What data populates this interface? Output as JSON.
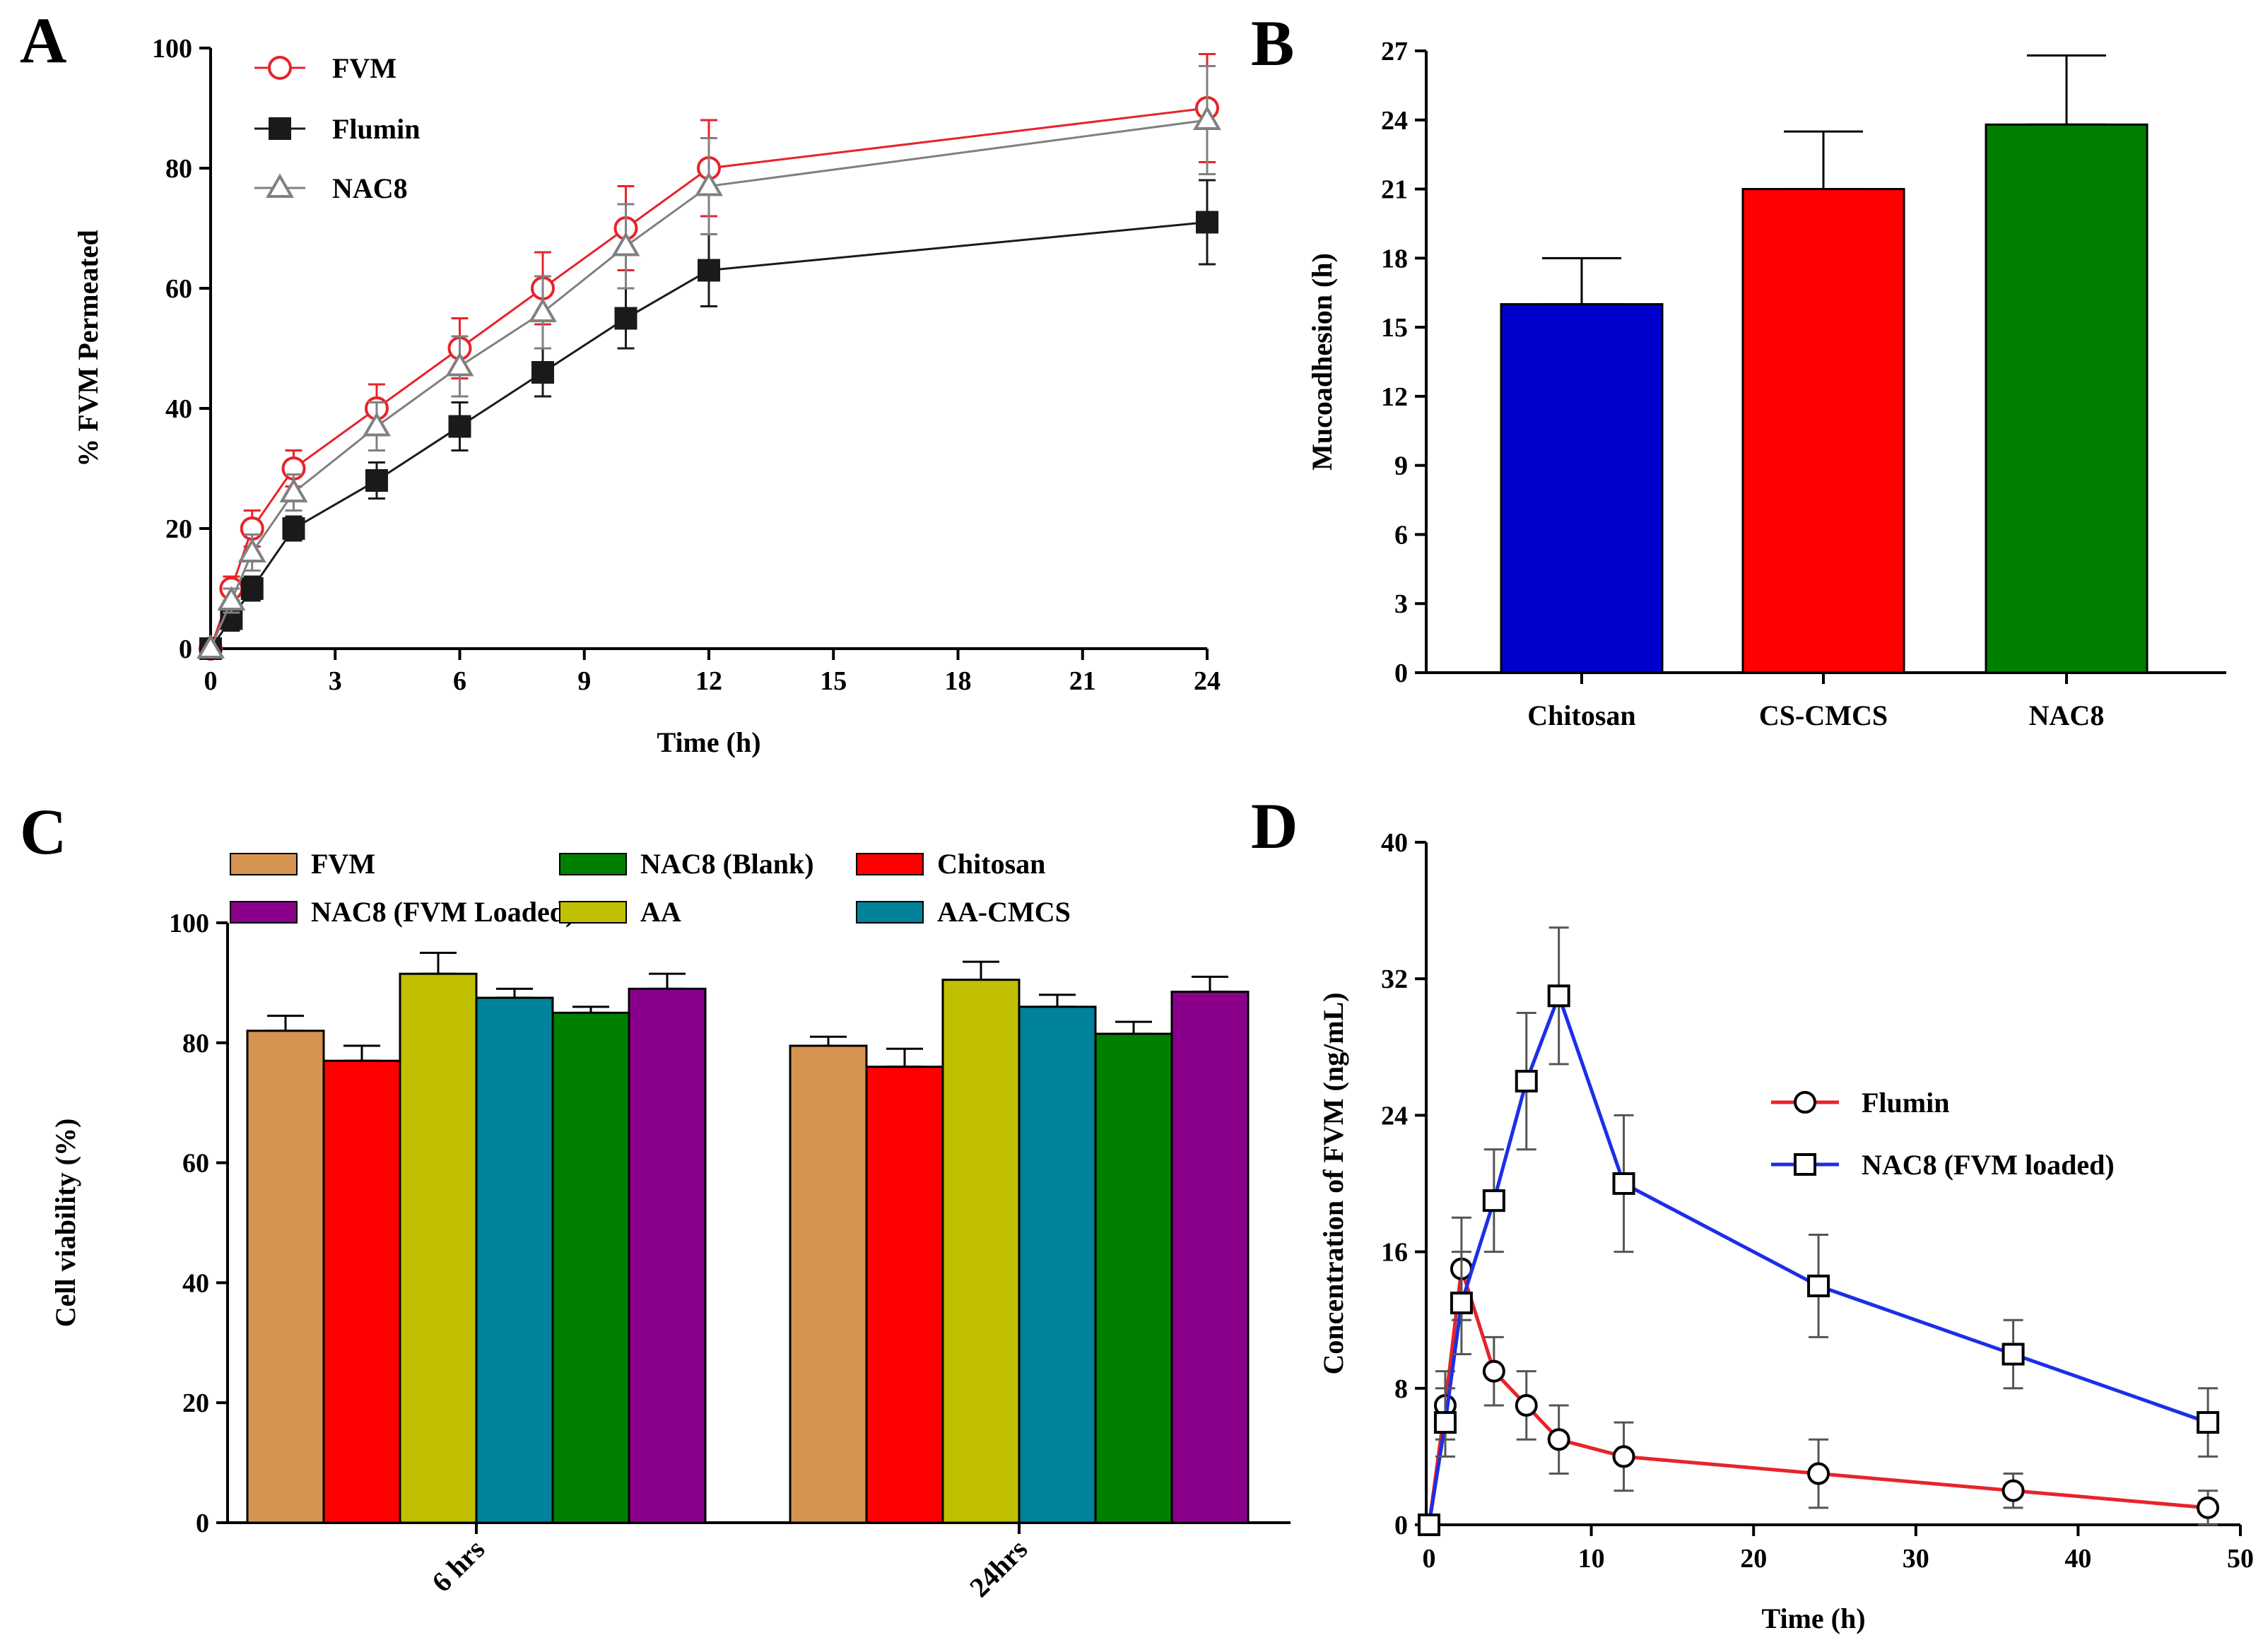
{
  "chart_data": [
    {
      "panel": "A",
      "type": "line",
      "xlabel": "Time (h)",
      "ylabel": "% FVM Permeated",
      "xlim": [
        0,
        24
      ],
      "ylim": [
        0,
        100
      ],
      "xticks": [
        0,
        3,
        6,
        9,
        12,
        15,
        18,
        21,
        24
      ],
      "yticks": [
        0,
        20,
        40,
        60,
        80,
        100
      ],
      "x": [
        0,
        0.5,
        1,
        2,
        4,
        6,
        8,
        10,
        12,
        24
      ],
      "legend_position": "top-left",
      "series": [
        {
          "name": "FVM",
          "color": "#e8232a",
          "marker": "open-circle",
          "values": [
            0,
            10,
            20,
            30,
            40,
            50,
            60,
            70,
            80,
            90
          ],
          "errors": [
            0,
            2,
            3,
            3,
            4,
            5,
            6,
            7,
            8,
            9
          ]
        },
        {
          "name": "Flumin",
          "color": "#1a1a1a",
          "marker": "filled-square",
          "values": [
            0,
            5,
            10,
            20,
            28,
            37,
            46,
            55,
            63,
            71
          ],
          "errors": [
            0,
            2,
            2,
            2,
            3,
            4,
            4,
            5,
            6,
            7
          ]
        },
        {
          "name": "NAC8",
          "color": "#808080",
          "marker": "open-triangle",
          "values": [
            0,
            8,
            16,
            26,
            37,
            47,
            56,
            67,
            77,
            88
          ],
          "errors": [
            0,
            2,
            3,
            3,
            4,
            5,
            6,
            7,
            8,
            9
          ]
        }
      ]
    },
    {
      "panel": "B",
      "type": "bar",
      "xlabel": "",
      "ylabel": "Mucoadhesion (h)",
      "ylim": [
        0,
        27
      ],
      "yticks": [
        0,
        3,
        6,
        9,
        12,
        15,
        18,
        21,
        24,
        27
      ],
      "categories": [
        "Chitosan",
        "CS-CMCS",
        "NAC8"
      ],
      "values": [
        16,
        21,
        23.8
      ],
      "errors": [
        2,
        2.5,
        3
      ],
      "colors": [
        "#0000cc",
        "#ff0000",
        "#008000"
      ]
    },
    {
      "panel": "C",
      "type": "bar",
      "xlabel": "",
      "ylabel": "Cell viability (%)",
      "ylim": [
        0,
        100
      ],
      "yticks": [
        0,
        20,
        40,
        60,
        80,
        100
      ],
      "categories": [
        "6 hrs",
        "24hrs"
      ],
      "legend_position": "top",
      "legend_order": [
        0,
        5,
        4,
        2,
        1,
        3
      ],
      "series": [
        {
          "name": "FVM",
          "color": "#d5944f",
          "values": [
            82,
            79.5
          ],
          "errors": [
            2.5,
            1.5
          ]
        },
        {
          "name": "Chitosan",
          "color": "#ff0000",
          "values": [
            77,
            76
          ],
          "errors": [
            2.5,
            3
          ]
        },
        {
          "name": "AA",
          "color": "#c0c000",
          "values": [
            91.5,
            90.5
          ],
          "errors": [
            3.5,
            3
          ]
        },
        {
          "name": "AA-CMCS",
          "color": "#00829a",
          "values": [
            87.5,
            86
          ],
          "errors": [
            1.5,
            2
          ]
        },
        {
          "name": "NAC8 (Blank)",
          "color": "#008000",
          "values": [
            85,
            81.5
          ],
          "errors": [
            1,
            2
          ]
        },
        {
          "name": "NAC8 (FVM Loaded)",
          "color": "#8b008b",
          "values": [
            89,
            88.5
          ],
          "errors": [
            2.5,
            2.5
          ]
        }
      ]
    },
    {
      "panel": "D",
      "type": "line",
      "xlabel": "Time (h)",
      "ylabel": "Concentration of FVM (ng/mL)",
      "xlim": [
        0,
        50
      ],
      "ylim": [
        0,
        40
      ],
      "xticks": [
        0,
        10,
        20,
        30,
        40,
        50
      ],
      "yticks": [
        0,
        8,
        16,
        24,
        32,
        40
      ],
      "x": [
        0,
        1,
        2,
        4,
        6,
        8,
        12,
        24,
        36,
        48
      ],
      "legend_position": "middle-right",
      "series": [
        {
          "name": "Flumin",
          "color": "#e8232a",
          "marker": "open-circle",
          "values": [
            0,
            7,
            15,
            9,
            7,
            5,
            4,
            3,
            2,
            1
          ],
          "errors": [
            0,
            2,
            3,
            2,
            2,
            2,
            2,
            2,
            1,
            1
          ]
        },
        {
          "name": "NAC8 (FVM loaded)",
          "color": "#1c2ee8",
          "marker": "open-square",
          "values": [
            0,
            6,
            13,
            19,
            26,
            31,
            20,
            14,
            10,
            6
          ],
          "errors": [
            0,
            2,
            3,
            3,
            4,
            4,
            4,
            3,
            2,
            2
          ]
        }
      ]
    }
  ]
}
